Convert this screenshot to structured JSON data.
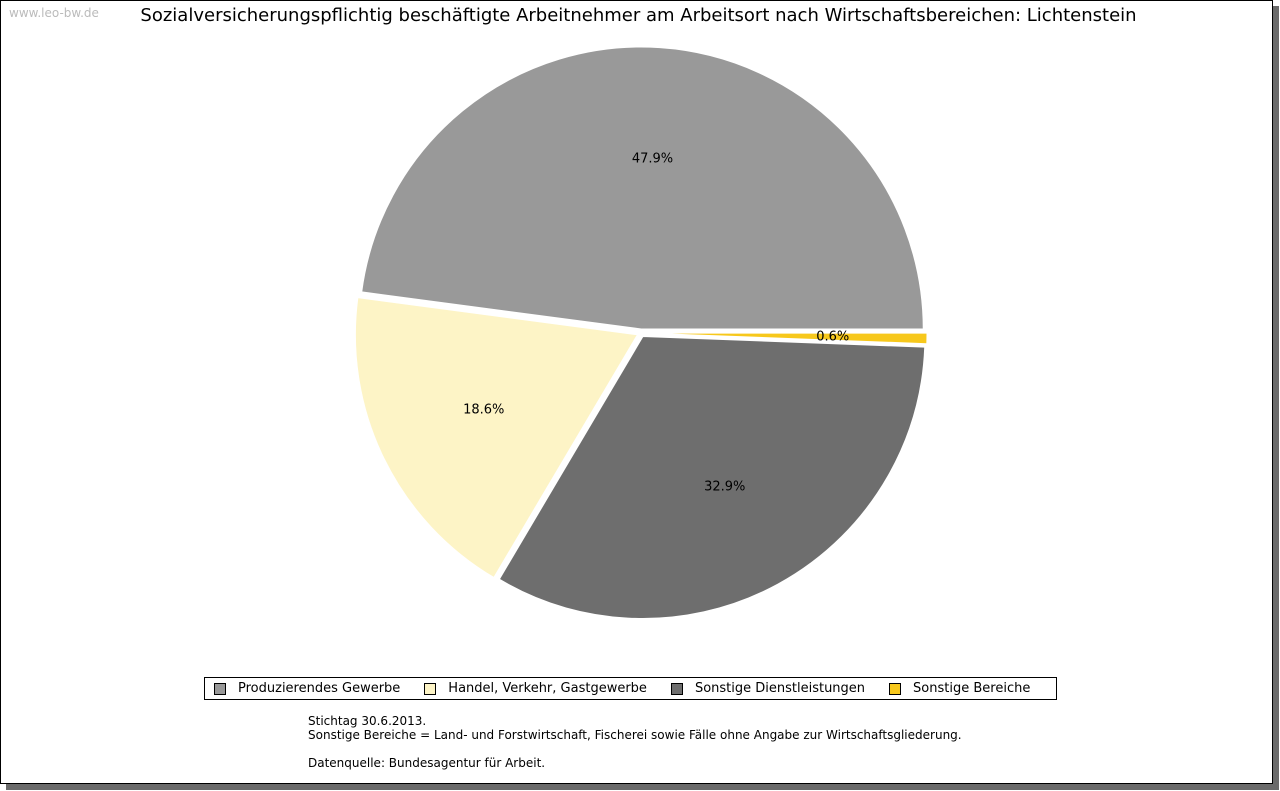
{
  "watermark": "www.leo-bw.de",
  "chart_data": {
    "type": "pie",
    "title": "Sozialversicherungspflichtig beschäftigte Arbeitnehmer am Arbeitsort nach Wirtschaftsbereichen: Lichtenstein",
    "categories": [
      "Produzierendes Gewerbe",
      "Handel, Verkehr, Gastgewerbe",
      "Sonstige Dienstleistungen",
      "Sonstige Bereiche"
    ],
    "values": [
      47.9,
      18.6,
      32.9,
      0.6
    ],
    "labels": [
      "47.9%",
      "18.6%",
      "32.9%",
      "0.6%"
    ],
    "colors": [
      "#999999",
      "#fdf4c6",
      "#6e6e6e",
      "#f7c81c"
    ],
    "legend_position": "bottom"
  },
  "notes": {
    "line1": "Stichtag 30.6.2013.",
    "line2": "Sonstige Bereiche = Land- und Forstwirtschaft, Fischerei sowie Fälle ohne Angabe zur Wirtschaftsgliederung.",
    "line3": "Datenquelle: Bundesagentur für Arbeit."
  }
}
